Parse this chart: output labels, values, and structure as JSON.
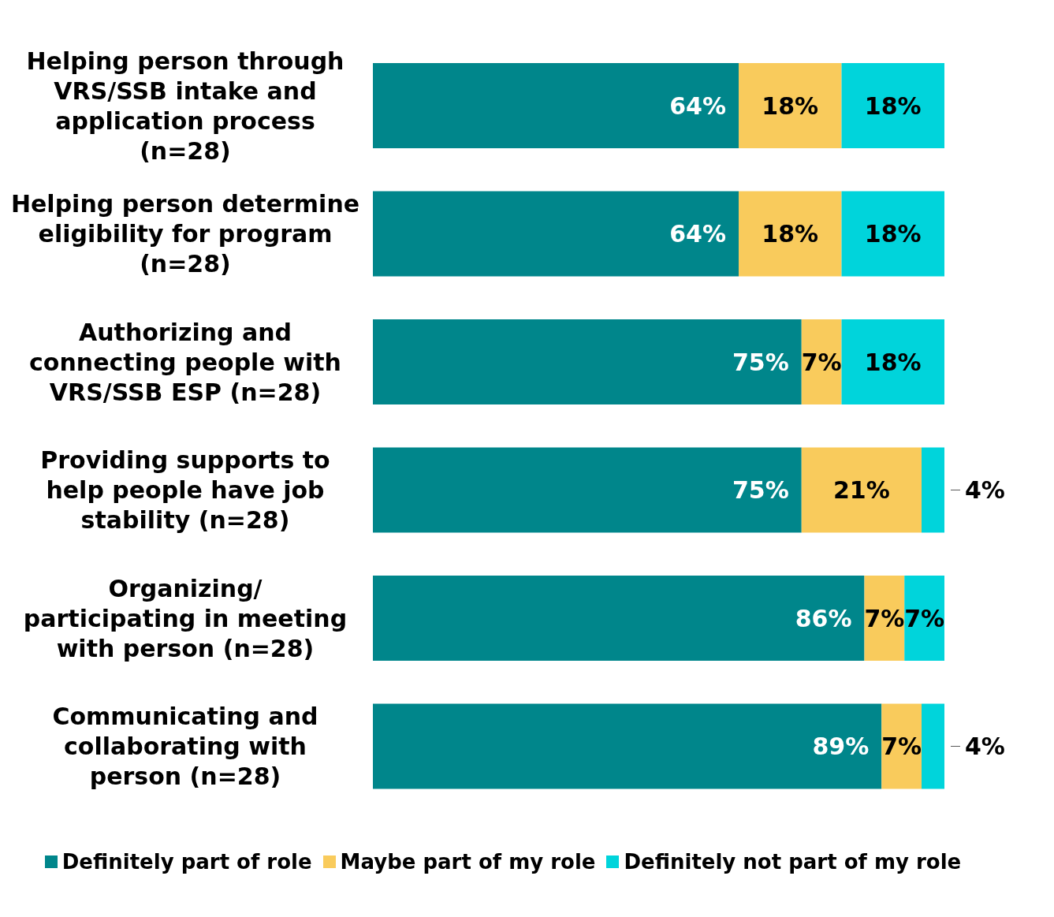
{
  "chart_data": {
    "type": "bar",
    "orientation": "horizontal",
    "stacked": true,
    "categories": [
      "Helping person through VRS/SSB intake and application process (n=28)",
      "Helping person determine eligibility for program (n=28)",
      "Authorizing and connecting people with VRS/SSB ESP (n=28)",
      "Providing supports to help people have job stability (n=28)",
      "Organizing/ participating in meeting with person (n=28)",
      "Communicating and collaborating with person (n=28)"
    ],
    "series": [
      {
        "name": "Definitely part of role",
        "color": "#00868b",
        "values": [
          64,
          64,
          75,
          75,
          86,
          89
        ],
        "value_labels": [
          "64%",
          "64%",
          "75%",
          "75%",
          "86%",
          "89%"
        ]
      },
      {
        "name": "Maybe part of my role",
        "color": "#f9cb5c",
        "values": [
          18,
          18,
          7,
          21,
          7,
          7
        ],
        "value_labels": [
          "18%",
          "18%",
          "7%",
          "21%",
          "7%",
          "7%"
        ]
      },
      {
        "name": "Definitely not part of my role",
        "color": "#00d4db",
        "values": [
          18,
          18,
          18,
          4,
          7,
          4
        ],
        "value_labels": [
          "18%",
          "18%",
          "18%",
          "4%",
          "7%",
          "4%"
        ]
      }
    ],
    "xlim": [
      0,
      100
    ],
    "legend": "bottom",
    "tick_labels": "y"
  }
}
